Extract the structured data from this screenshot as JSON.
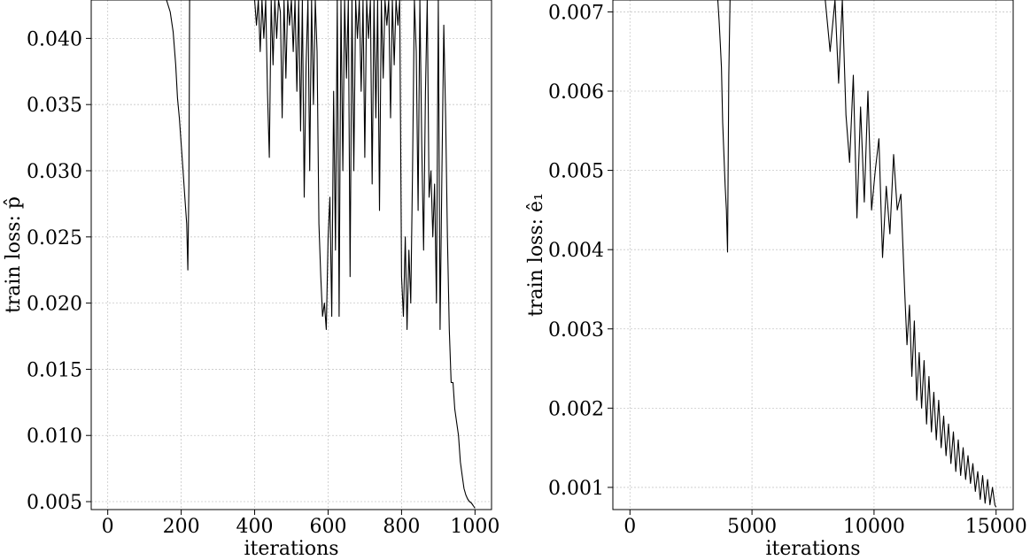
{
  "chart_data": [
    {
      "type": "line",
      "xlabel": "iterations",
      "ylabel": "train loss: p̂",
      "xlim": [
        -45,
        1045
      ],
      "ylim": [
        0.0044,
        0.0429
      ],
      "xticks": [
        0,
        200,
        400,
        600,
        800,
        1000
      ],
      "xtick_labels": [
        "0",
        "200",
        "400",
        "600",
        "800",
        "1000"
      ],
      "yticks": [
        0.005,
        0.01,
        0.015,
        0.02,
        0.025,
        0.03,
        0.035,
        0.04
      ],
      "ytick_labels": [
        "0.005",
        "0.010",
        "0.015",
        "0.020",
        "0.025",
        "0.030",
        "0.035",
        "0.040"
      ],
      "grid": true,
      "series": [
        {
          "x": [
            160,
            170,
            178,
            185,
            190,
            195,
            200,
            205,
            210,
            215,
            218,
            221,
            223,
            225,
            228,
            232,
            240,
            300,
            350,
            400,
            405,
            410,
            415,
            420,
            425,
            430,
            435,
            440,
            445,
            450,
            455,
            460,
            465,
            470,
            475,
            480,
            485,
            490,
            495,
            500,
            505,
            510,
            515,
            520,
            525,
            530,
            535,
            540,
            545,
            550,
            555,
            560,
            565,
            570,
            575,
            580,
            585,
            590,
            595,
            600,
            605,
            610,
            615,
            620,
            625,
            630,
            635,
            640,
            645,
            650,
            655,
            660,
            665,
            670,
            675,
            680,
            685,
            690,
            695,
            700,
            705,
            710,
            715,
            720,
            725,
            730,
            735,
            740,
            745,
            750,
            755,
            760,
            765,
            770,
            775,
            780,
            785,
            790,
            795,
            800,
            805,
            810,
            815,
            820,
            825,
            830,
            835,
            840,
            845,
            850,
            855,
            860,
            865,
            870,
            875,
            880,
            885,
            890,
            895,
            900,
            905,
            910,
            915,
            920,
            925,
            930,
            935,
            940,
            945,
            950,
            955,
            960,
            965,
            970,
            975,
            980,
            985,
            990,
            995,
            1000
          ],
          "y": [
            0.043,
            0.042,
            0.0405,
            0.038,
            0.0355,
            0.034,
            0.032,
            0.03,
            0.028,
            0.026,
            0.0225,
            0.029,
            0.043,
            0.043,
            0.043,
            0.043,
            0.043,
            0.043,
            0.043,
            0.043,
            0.041,
            0.043,
            0.039,
            0.043,
            0.04,
            0.043,
            0.036,
            0.031,
            0.043,
            0.038,
            0.043,
            0.04,
            0.043,
            0.042,
            0.034,
            0.043,
            0.037,
            0.043,
            0.041,
            0.043,
            0.039,
            0.043,
            0.036,
            0.043,
            0.033,
            0.043,
            0.028,
            0.038,
            0.043,
            0.03,
            0.043,
            0.035,
            0.043,
            0.039,
            0.026,
            0.022,
            0.019,
            0.02,
            0.018,
            0.025,
            0.028,
            0.019,
            0.036,
            0.024,
            0.043,
            0.019,
            0.043,
            0.03,
            0.043,
            0.037,
            0.043,
            0.022,
            0.043,
            0.03,
            0.043,
            0.04,
            0.043,
            0.036,
            0.043,
            0.031,
            0.043,
            0.04,
            0.043,
            0.029,
            0.043,
            0.034,
            0.043,
            0.027,
            0.043,
            0.037,
            0.043,
            0.041,
            0.043,
            0.034,
            0.043,
            0.038,
            0.043,
            0.041,
            0.043,
            0.022,
            0.019,
            0.025,
            0.018,
            0.024,
            0.02,
            0.03,
            0.043,
            0.039,
            0.027,
            0.043,
            0.032,
            0.024,
            0.036,
            0.043,
            0.028,
            0.03,
            0.025,
            0.029,
            0.02,
            0.043,
            0.018,
            0.03,
            0.041,
            0.034,
            0.025,
            0.018,
            0.014,
            0.014,
            0.012,
            0.011,
            0.01,
            0.008,
            0.007,
            0.006,
            0.0055,
            0.0052,
            0.005,
            0.0049,
            0.0047,
            0.0045
          ]
        }
      ]
    },
    {
      "type": "line",
      "xlabel": "iterations",
      "ylabel": "train loss: ê₁",
      "xlim": [
        -700,
        15700
      ],
      "ylim": [
        0.00072,
        0.00715
      ],
      "xticks": [
        0,
        5000,
        10000,
        15000
      ],
      "xtick_labels": [
        "0",
        "5000",
        "10000",
        "15000"
      ],
      "yticks": [
        0.001,
        0.002,
        0.003,
        0.004,
        0.005,
        0.006,
        0.007
      ],
      "ytick_labels": [
        "0.001",
        "0.002",
        "0.003",
        "0.004",
        "0.005",
        "0.006",
        "0.007"
      ],
      "grid": true,
      "series": [
        {
          "x": [
            3600,
            3650,
            3700,
            3750,
            3800,
            3850,
            3900,
            3950,
            4000,
            4050,
            4100,
            4150,
            4300,
            6000,
            7800,
            8000,
            8200,
            8400,
            8550,
            8700,
            8850,
            9000,
            9150,
            9300,
            9450,
            9600,
            9750,
            9900,
            10050,
            10200,
            10350,
            10500,
            10650,
            10800,
            10950,
            11100,
            11250,
            11350,
            11450,
            11550,
            11650,
            11750,
            11850,
            11950,
            12050,
            12150,
            12250,
            12350,
            12450,
            12550,
            12650,
            12750,
            12850,
            12950,
            13050,
            13150,
            13250,
            13350,
            13450,
            13550,
            13650,
            13750,
            13850,
            13950,
            14050,
            14150,
            14250,
            14350,
            14450,
            14550,
            14650,
            14750,
            14850,
            14950,
            15000
          ],
          "y": [
            0.00715,
            0.0069,
            0.0066,
            0.0063,
            0.0056,
            0.0052,
            0.0048,
            0.0045,
            0.00397,
            0.0062,
            0.00715,
            0.00715,
            0.00715,
            0.00715,
            0.00715,
            0.00715,
            0.0065,
            0.00715,
            0.0061,
            0.00715,
            0.0057,
            0.0051,
            0.0062,
            0.0044,
            0.0058,
            0.0046,
            0.006,
            0.0045,
            0.005,
            0.0054,
            0.0039,
            0.0048,
            0.0042,
            0.0052,
            0.0045,
            0.0047,
            0.0035,
            0.0028,
            0.0033,
            0.0024,
            0.0031,
            0.0021,
            0.0027,
            0.002,
            0.0026,
            0.0018,
            0.0024,
            0.0017,
            0.0022,
            0.0016,
            0.0021,
            0.0015,
            0.0019,
            0.0014,
            0.0018,
            0.0013,
            0.0017,
            0.0012,
            0.0016,
            0.00115,
            0.0015,
            0.0011,
            0.0014,
            0.00105,
            0.0013,
            0.00095,
            0.0012,
            0.00085,
            0.00115,
            0.0008,
            0.0011,
            0.00078,
            0.001,
            0.00078,
            0.00075
          ]
        }
      ]
    }
  ]
}
